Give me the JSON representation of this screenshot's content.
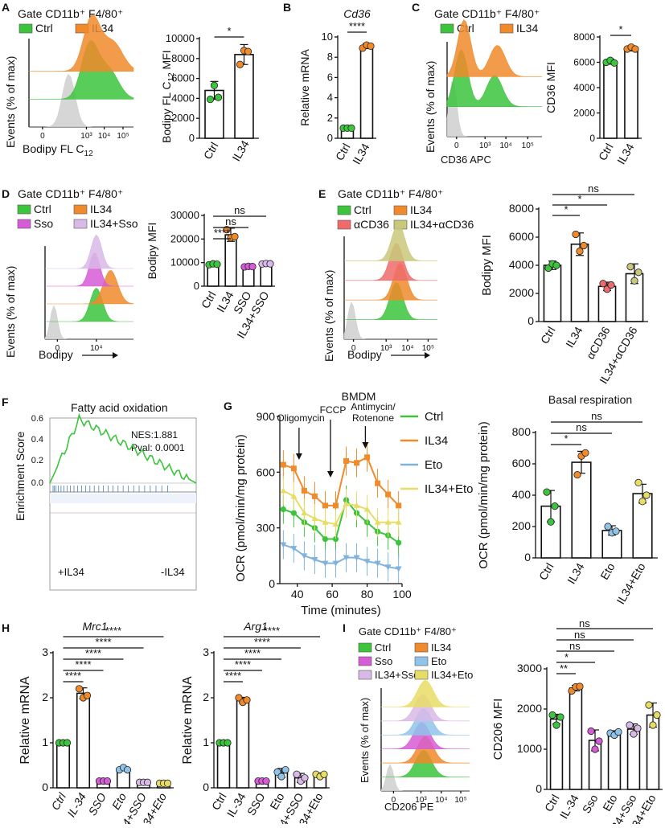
{
  "panels": {
    "A": {
      "letter": "A",
      "gate": "Gate CD11b⁺ F4/80⁺",
      "xlabel": "Bodipy FL C",
      "xlabel_sub": "12",
      "ylabel": "Events (% of max)",
      "bar_ylabel": "Bodipy FL C",
      "bar_ylabel_sub": "12",
      "bar_ylabel_tail": " MFI"
    },
    "B": {
      "letter": "B",
      "title": "Cd36"
    },
    "C": {
      "letter": "C",
      "gate": "Gate CD11b⁺ F4/80⁺",
      "xlabel": "CD36 APC",
      "ylabel": "Events (% of max)"
    },
    "D": {
      "letter": "D",
      "gate": "Gate CD11b⁺ F4/80⁺",
      "xlabel": "Bodipy",
      "ylabel": "Events (% of max)"
    },
    "E": {
      "letter": "E",
      "gate": "Gate CD11b⁺ F4/80⁺",
      "xlabel": "Bodipy",
      "ylabel": "Events (% of max)"
    },
    "F": {
      "letter": "F",
      "title": "Fatty acid oxidation",
      "ylabel": "Enrichment Score",
      "nes": "NES:1.881",
      "pval": "Pval:  0.0001",
      "left": "+IL34",
      "right": "-IL34"
    },
    "G": {
      "letter": "G"
    },
    "H": {
      "letter": "H"
    },
    "I": {
      "letter": "I",
      "gate": "Gate CD11b⁺ F4/80⁺",
      "xlabel": "CD206 PE",
      "ylabel": "Events (% of max)"
    }
  },
  "colors": {
    "ctrl": "#3cc43c",
    "il34": "#f08a2a",
    "sso": "#d65cd6",
    "eto": "#8fc3ea",
    "il34sso": "#d9b9e8",
    "il34eto": "#e7dd66",
    "acd36": "#ef6b6b",
    "il34acd36": "#c9c87a",
    "grey": "#cfcfcf"
  },
  "chart_data": [
    {
      "id": "A-bar",
      "type": "bar",
      "categories": [
        "Ctrl",
        "IL34"
      ],
      "values": [
        4800,
        8400
      ],
      "err": [
        900,
        1000
      ],
      "points": [
        [
          3900,
          5300,
          4100
        ],
        [
          7400,
          8800,
          8700
        ]
      ],
      "ylabel": "Bodipy FL C12 MFI",
      "ylim": [
        0,
        10000
      ],
      "yticks": [
        "0",
        "2000",
        "4000",
        "6000",
        "8000",
        "10000"
      ],
      "sig": [
        "*"
      ]
    },
    {
      "id": "B-bar",
      "type": "bar",
      "title": "Cd36",
      "categories": [
        "Ctrl",
        "IL34"
      ],
      "values": [
        1.0,
        9.1
      ],
      "err": [
        0.05,
        0.25
      ],
      "points": [
        [
          1.0,
          1.0,
          1.0
        ],
        [
          8.9,
          9.2,
          9.1
        ]
      ],
      "ylabel": "Relative mRNA",
      "ylim": [
        0,
        10
      ],
      "yticks": [
        "0",
        "2",
        "4",
        "6",
        "8",
        "10"
      ],
      "sig": [
        "****"
      ]
    },
    {
      "id": "C-bar",
      "type": "bar",
      "categories": [
        "Ctrl",
        "IL34"
      ],
      "values": [
        6050,
        7100
      ],
      "err": [
        200,
        200
      ],
      "points": [
        [
          6000,
          6150,
          5950
        ],
        [
          7050,
          7200,
          7050
        ]
      ],
      "ylabel": "CD36 MFI",
      "ylim": [
        0,
        8000
      ],
      "yticks": [
        "0",
        "2000",
        "4000",
        "6000",
        "8000"
      ],
      "sig": [
        "*"
      ]
    },
    {
      "id": "D-bar",
      "type": "bar",
      "categories": [
        "Ctrl",
        "IL34",
        "SSO",
        "IL34+SSO"
      ],
      "values": [
        9300,
        21800,
        8300,
        9500
      ],
      "err": [
        500,
        2800,
        400,
        400
      ],
      "points": [
        [
          9100,
          9500,
          9300
        ],
        [
          24000,
          20500,
          21000
        ],
        [
          8200,
          8400,
          8300
        ],
        [
          9400,
          9600,
          9500
        ]
      ],
      "ylabel": "Bodipy MFI",
      "ylim": [
        0,
        30000
      ],
      "yticks": [
        "0",
        "10000",
        "20000",
        "30000"
      ],
      "sig": [
        "****",
        "ns",
        "ns"
      ]
    },
    {
      "id": "E-bar",
      "type": "bar",
      "categories": [
        "Ctrl",
        "IL34",
        "αCD36",
        "IL34+αCD36"
      ],
      "values": [
        4000,
        5500,
        2500,
        3400
      ],
      "err": [
        300,
        800,
        300,
        700
      ],
      "points": [
        [
          3800,
          4100,
          4000
        ],
        [
          6200,
          5000,
          5400
        ],
        [
          2700,
          2300,
          2600
        ],
        [
          3900,
          2900,
          3500
        ]
      ],
      "ylabel": "Bodipy MFI",
      "ylim": [
        0,
        8000
      ],
      "yticks": [
        "0",
        "2000",
        "4000",
        "6000",
        "8000"
      ],
      "sig": [
        "*",
        "*",
        "ns"
      ]
    },
    {
      "id": "G-line",
      "type": "line",
      "title": "BMDM",
      "xlabel": "Time (minutes)",
      "ylabel": "OCR (pmol/min/mg protein)",
      "xlim": [
        30,
        100
      ],
      "ylim": [
        0,
        900
      ],
      "xticks": [
        "40",
        "60",
        "80",
        "100"
      ],
      "yticks": [
        "0",
        "300",
        "600",
        "900"
      ],
      "x": [
        32,
        38,
        44,
        50,
        56,
        62,
        68,
        74,
        80,
        86,
        92,
        98
      ],
      "annotations": [
        "Oligomycin",
        "FCCP",
        "Antimycin/\nRotenone"
      ],
      "series": [
        {
          "name": "Ctrl",
          "values": [
            400,
            380,
            330,
            300,
            240,
            240,
            450,
            380,
            330,
            280,
            260,
            220
          ]
        },
        {
          "name": "IL34",
          "values": [
            640,
            620,
            500,
            470,
            420,
            420,
            660,
            650,
            680,
            540,
            480,
            420
          ]
        },
        {
          "name": "Eto",
          "values": [
            210,
            190,
            150,
            130,
            110,
            110,
            140,
            140,
            120,
            110,
            90,
            80
          ]
        },
        {
          "name": "IL34+Eto",
          "values": [
            500,
            470,
            380,
            350,
            330,
            320,
            430,
            420,
            400,
            330,
            330,
            330
          ]
        }
      ]
    },
    {
      "id": "G-bar",
      "type": "bar",
      "title": "Basal respiration",
      "categories": [
        "Ctrl",
        "IL34",
        "Eto",
        "IL34+Eto"
      ],
      "values": [
        330,
        610,
        175,
        410
      ],
      "err": [
        100,
        70,
        30,
        60
      ],
      "points": [
        [
          420,
          230,
          330
        ],
        [
          530,
          650,
          670
        ],
        [
          200,
          160,
          170
        ],
        [
          480,
          360,
          400
        ]
      ],
      "ylabel": "OCR (pmol/min/mg protein)",
      "ylim": [
        0,
        800
      ],
      "yticks": [
        "0",
        "200",
        "400",
        "600",
        "800"
      ],
      "sig": [
        "*",
        "ns",
        "ns"
      ]
    },
    {
      "id": "H-Mrc1",
      "type": "bar",
      "title": "Mrc1",
      "categories": [
        "Ctrl",
        "IL-34",
        "SSO",
        "Eto",
        "IL34+SSO",
        "IL34+Eto"
      ],
      "values": [
        1.0,
        2.1,
        0.15,
        0.42,
        0.12,
        0.1
      ],
      "err": [
        0.03,
        0.12,
        0.03,
        0.04,
        0.03,
        0.02
      ],
      "points": [
        [
          1.0,
          1.0,
          1.0
        ],
        [
          2.2,
          2.0,
          2.05
        ],
        [
          0.15,
          0.15,
          0.15
        ],
        [
          0.4,
          0.45,
          0.4
        ],
        [
          0.12,
          0.12,
          0.12
        ],
        [
          0.1,
          0.1,
          0.1
        ]
      ],
      "ylabel": "Relative mRNA",
      "ylim": [
        0,
        3
      ],
      "yticks": [
        "0",
        "1",
        "2",
        "3"
      ],
      "sig": [
        "****",
        "****",
        "****",
        "****",
        "****"
      ]
    },
    {
      "id": "H-Arg1",
      "type": "bar",
      "title": "Arg1",
      "categories": [
        "Ctrl",
        "IL-34",
        "SSO",
        "Eto",
        "IL34+SSO",
        "IL34+Eto"
      ],
      "values": [
        1.0,
        1.95,
        0.15,
        0.33,
        0.22,
        0.28
      ],
      "err": [
        0.03,
        0.06,
        0.03,
        0.1,
        0.1,
        0.05
      ],
      "points": [
        [
          1.0,
          1.0,
          1.0
        ],
        [
          2.0,
          1.9,
          1.95
        ],
        [
          0.15,
          0.15,
          0.15
        ],
        [
          0.35,
          0.25,
          0.4
        ],
        [
          0.3,
          0.15,
          0.22
        ],
        [
          0.3,
          0.25,
          0.3
        ]
      ],
      "ylabel": "Relative mRNA",
      "ylim": [
        0,
        3
      ],
      "yticks": [
        "0",
        "1",
        "2",
        "3"
      ],
      "sig": [
        "****",
        "****",
        "****",
        "****",
        "****"
      ]
    },
    {
      "id": "I-bar",
      "type": "bar",
      "categories": [
        "Ctrl",
        "IL-34",
        "Sso",
        "Eto",
        "IL34+Sso",
        "IL34+Eto"
      ],
      "values": [
        1750,
        2520,
        1220,
        1400,
        1500,
        1850
      ],
      "err": [
        120,
        70,
        260,
        60,
        130,
        300
      ],
      "points": [
        [
          1850,
          1600,
          1800
        ],
        [
          2450,
          2550,
          2560
        ],
        [
          1450,
          1000,
          1200
        ],
        [
          1400,
          1350,
          1430
        ],
        [
          1600,
          1380,
          1520
        ],
        [
          2100,
          1600,
          1850
        ]
      ],
      "ylabel": "CD206 MFI",
      "ylim": [
        0,
        3000
      ],
      "yticks": [
        "0",
        "1000",
        "2000",
        "3000"
      ],
      "sig": [
        "**",
        "*",
        "ns",
        "ns",
        "ns"
      ]
    }
  ],
  "histograms": {
    "A": {
      "xticks": [
        "0",
        "10³",
        "10⁴",
        "10⁵"
      ],
      "legend": [
        {
          "label": "Ctrl",
          "color": "ctrl"
        },
        {
          "label": "IL34",
          "color": "il34"
        }
      ]
    },
    "C": {
      "xticks": [
        "0",
        "10³",
        "10⁴",
        "10⁵"
      ],
      "legend": [
        {
          "label": "Ctrl",
          "color": "ctrl"
        },
        {
          "label": "IL34",
          "color": "il34"
        }
      ]
    },
    "D": {
      "xticks": [
        "0",
        "10⁴"
      ],
      "legend": [
        {
          "label": "Ctrl",
          "color": "ctrl"
        },
        {
          "label": "IL34",
          "color": "il34"
        },
        {
          "label": "Sso",
          "color": "sso"
        },
        {
          "label": "IL34+Sso",
          "color": "il34sso"
        }
      ]
    },
    "E": {
      "xticks": [
        "0",
        "10³",
        "10⁴",
        "10⁵"
      ],
      "legend": [
        {
          "label": "Ctrl",
          "color": "ctrl"
        },
        {
          "label": "IL34",
          "color": "il34"
        },
        {
          "label": "αCD36",
          "color": "acd36"
        },
        {
          "label": "IL34+αCD36",
          "color": "il34acd36"
        }
      ]
    },
    "I": {
      "xticks": [
        "0",
        "10³",
        "10⁴",
        "10⁵"
      ],
      "legend": [
        {
          "label": "Ctrl",
          "color": "ctrl"
        },
        {
          "label": "IL34",
          "color": "il34"
        },
        {
          "label": "Sso",
          "color": "sso"
        },
        {
          "label": "Eto",
          "color": "eto"
        },
        {
          "label": "IL34+Sso",
          "color": "il34sso"
        },
        {
          "label": "IL34+Eto",
          "color": "il34eto"
        }
      ]
    }
  }
}
